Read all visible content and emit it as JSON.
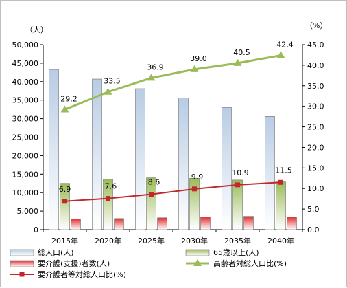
{
  "chart_data": {
    "type": "bar",
    "categories": [
      "2015年",
      "2020年",
      "2025年",
      "2030年",
      "2035年",
      "2040年"
    ],
    "y_left": {
      "unit": "（人）",
      "min": 0,
      "max": 50000,
      "step": 5000
    },
    "y_right": {
      "unit": "（%）",
      "min": 0,
      "max": 45,
      "step": 5
    },
    "grid": false,
    "legend_position": "bottom",
    "bar_series": [
      {
        "name": "総人口(人)",
        "values": [
          43300,
          40700,
          38100,
          35600,
          33000,
          30600
        ],
        "color": "#b8cce4"
      },
      {
        "name": "65歳以上(人)",
        "values": [
          12500,
          13600,
          14000,
          13900,
          13400,
          12900
        ],
        "color": "#9bbb59"
      },
      {
        "name": "要介護(支援)者数(人)",
        "values": [
          2900,
          3000,
          3200,
          3400,
          3600,
          3400
        ],
        "color": "#e03030"
      }
    ],
    "line_series": [
      {
        "name": "高齢者対総人口比(%)",
        "axis": "right",
        "values": [
          29.2,
          33.5,
          36.9,
          39.0,
          40.5,
          42.4
        ],
        "labels": [
          "29.2",
          "33.5",
          "36.9",
          "39.0",
          "40.5",
          "42.4"
        ],
        "color": "#9bbb59",
        "marker": "triangle"
      },
      {
        "name": "要介護者等対総人口比(%)",
        "axis": "right",
        "values": [
          6.9,
          7.6,
          8.6,
          9.9,
          10.9,
          11.5
        ],
        "labels": [
          "6.9",
          "7.6",
          "8.6",
          "9.9",
          "10.9",
          "11.5"
        ],
        "color": "#c0282d",
        "marker": "square"
      }
    ]
  }
}
